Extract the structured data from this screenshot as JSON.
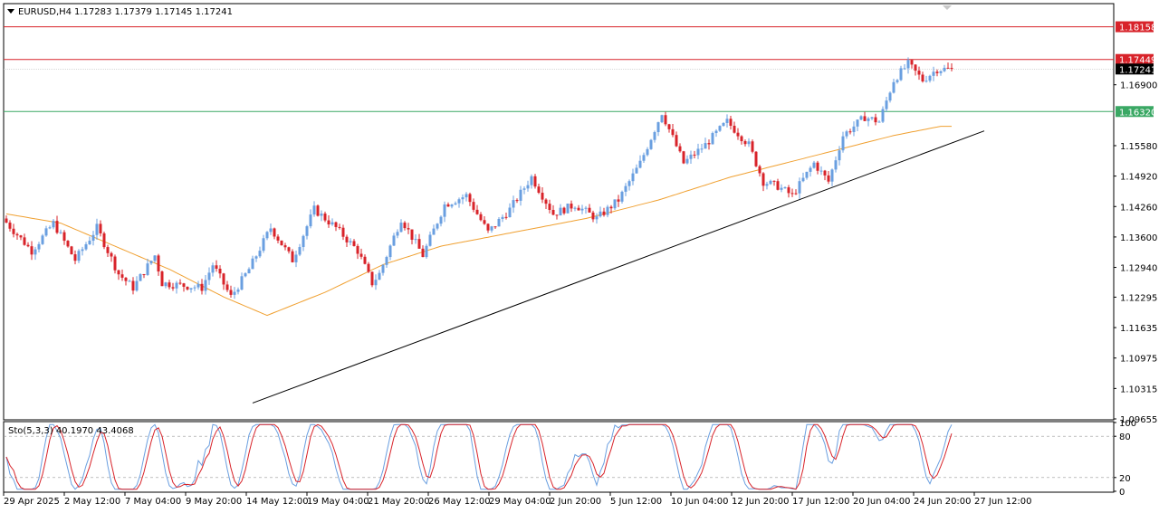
{
  "header": {
    "symbol": "EURUSD,H4",
    "ohlc": "1.17283 1.17379 1.17145 1.17241"
  },
  "colors": {
    "bull": "#6a9fe0",
    "bear": "#d8232a",
    "ma": "#f0a030",
    "trend": "#000000",
    "resistance": "#d8232a",
    "support": "#3aa864",
    "current": "#000000",
    "sto_main": "#6a9fe0",
    "sto_signal": "#d8232a"
  },
  "chart_data": [
    {
      "type": "line",
      "subtype": "candlestick",
      "title": "EURUSD,H4",
      "ylim": [
        1.09655,
        1.1864
      ],
      "y_ticks": [
        "1.18158",
        "1.17449",
        "1.17241",
        "1.16900",
        "1.16320",
        "1.15580",
        "1.14920",
        "1.14260",
        "1.13600",
        "1.12940",
        "1.12295",
        "1.11635",
        "1.10975",
        "1.10315",
        "1.09655"
      ],
      "x_tick_labels": [
        "29 Apr 2025",
        "2 May 12:00",
        "7 May 04:00",
        "9 May 20:00",
        "14 May 12:00",
        "19 May 04:00",
        "21 May 20:00",
        "26 May 12:00",
        "29 May 04:00",
        "2 Jun 20:00",
        "5 Jun 12:00",
        "10 Jun 04:00",
        "12 Jun 20:00",
        "17 Jun 12:00",
        "20 Jun 04:00",
        "24 Jun 20:00",
        "27 Jun 12:00"
      ],
      "price_anchors": [
        [
          0,
          1.14
        ],
        [
          8,
          1.133
        ],
        [
          14,
          1.139
        ],
        [
          20,
          1.131
        ],
        [
          26,
          1.138
        ],
        [
          32,
          1.128
        ],
        [
          36,
          1.125
        ],
        [
          42,
          1.132
        ],
        [
          44,
          1.126
        ],
        [
          55,
          1.125
        ],
        [
          58,
          1.13
        ],
        [
          63,
          1.123
        ],
        [
          68,
          1.129
        ],
        [
          74,
          1.138
        ],
        [
          80,
          1.131
        ],
        [
          86,
          1.142
        ],
        [
          92,
          1.138
        ],
        [
          98,
          1.133
        ],
        [
          102,
          1.126
        ],
        [
          104,
          1.128
        ],
        [
          110,
          1.14
        ],
        [
          116,
          1.132
        ],
        [
          122,
          1.143
        ],
        [
          128,
          1.145
        ],
        [
          134,
          1.137
        ],
        [
          140,
          1.142
        ],
        [
          146,
          1.149
        ],
        [
          152,
          1.141
        ],
        [
          158,
          1.143
        ],
        [
          164,
          1.14
        ],
        [
          170,
          1.144
        ],
        [
          176,
          1.152
        ],
        [
          182,
          1.163
        ],
        [
          188,
          1.152
        ],
        [
          194,
          1.156
        ],
        [
          200,
          1.161
        ],
        [
          206,
          1.156
        ],
        [
          210,
          1.148
        ],
        [
          214,
          1.147
        ],
        [
          218,
          1.145
        ],
        [
          224,
          1.152
        ],
        [
          228,
          1.148
        ],
        [
          232,
          1.158
        ],
        [
          238,
          1.162
        ],
        [
          242,
          1.161
        ],
        [
          246,
          1.17
        ],
        [
          250,
          1.1735
        ],
        [
          254,
          1.17
        ],
        [
          258,
          1.1724
        ]
      ],
      "ma_anchors": [
        [
          0,
          1.141
        ],
        [
          15,
          1.139
        ],
        [
          30,
          1.134
        ],
        [
          45,
          1.129
        ],
        [
          60,
          1.123
        ],
        [
          72,
          1.119
        ],
        [
          88,
          1.124
        ],
        [
          104,
          1.13
        ],
        [
          120,
          1.134
        ],
        [
          140,
          1.137
        ],
        [
          160,
          1.14
        ],
        [
          180,
          1.144
        ],
        [
          200,
          1.149
        ],
        [
          215,
          1.152
        ],
        [
          230,
          1.155
        ],
        [
          245,
          1.158
        ],
        [
          258,
          1.16
        ]
      ],
      "levels": [
        {
          "name": "resistance-upper",
          "value": 1.18158,
          "label": "1.18158"
        },
        {
          "name": "resistance-lower",
          "value": 1.17449,
          "label": "1.17449"
        },
        {
          "name": "current-price",
          "value": 1.17241,
          "label": "1.17241"
        },
        {
          "name": "support",
          "value": 1.1632,
          "label": "1.16320"
        }
      ],
      "trendline": {
        "from": [
          68,
          1.1
        ],
        "to": [
          270,
          1.159
        ]
      }
    },
    {
      "type": "line",
      "title": "Sto(5,3,3) 40.1970 43.4068",
      "indicator": "Sto(5,3,3)",
      "values": "40.1970 43.4068",
      "ylim": [
        0,
        100
      ],
      "y_ticks": [
        "100",
        "80",
        "20",
        "0"
      ],
      "levels": [
        80,
        20
      ]
    }
  ]
}
